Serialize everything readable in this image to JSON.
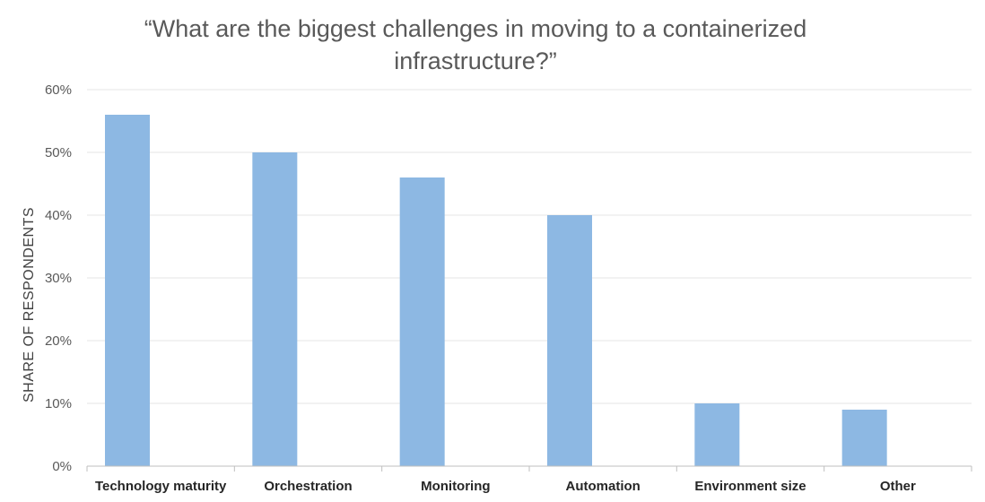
{
  "chart_data": {
    "type": "bar",
    "title": "“What are the biggest challenges in moving to a containerized infrastructure?”",
    "xlabel": "",
    "ylabel": "SHARE OF RESPONDENTS",
    "categories": [
      "Technology maturity",
      "Orchestration",
      "Monitoring",
      "Automation",
      "Environment size",
      "Other"
    ],
    "values": [
      56,
      50,
      46,
      40,
      10,
      9
    ],
    "ylim": [
      0,
      60
    ],
    "yticks": [
      "0%",
      "10%",
      "20%",
      "30%",
      "40%",
      "50%",
      "60%"
    ],
    "grid": true,
    "colors": {
      "bar": "#8db8e3",
      "grid": "#e6e6e6",
      "axis": "#bfbfbf"
    }
  }
}
